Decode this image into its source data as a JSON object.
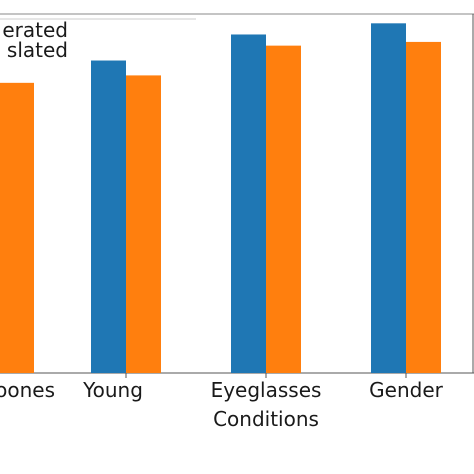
{
  "chart_data": {
    "type": "bar",
    "xlabel": "Conditions",
    "ylabel": "",
    "title": "",
    "categories": [
      "...pones",
      "Young",
      "Eyeglasses",
      "Gender"
    ],
    "series": [
      {
        "name": "...erated",
        "color": "#1f77b4",
        "values": [
          null,
          0.84,
          0.91,
          0.94
        ]
      },
      {
        "name": "...slated",
        "color": "#ff7f0e",
        "values": [
          0.78,
          0.8,
          0.88,
          0.89
        ]
      }
    ],
    "ylim": [
      0,
      1
    ],
    "grid": false,
    "legend_position": "top-left"
  },
  "legend": {
    "items": [
      "erated",
      "slated"
    ]
  },
  "x_tick_labels": [
    "oones",
    "Young",
    "Eyeglasses",
    "Gender"
  ],
  "x_axis_title": "Conditions"
}
